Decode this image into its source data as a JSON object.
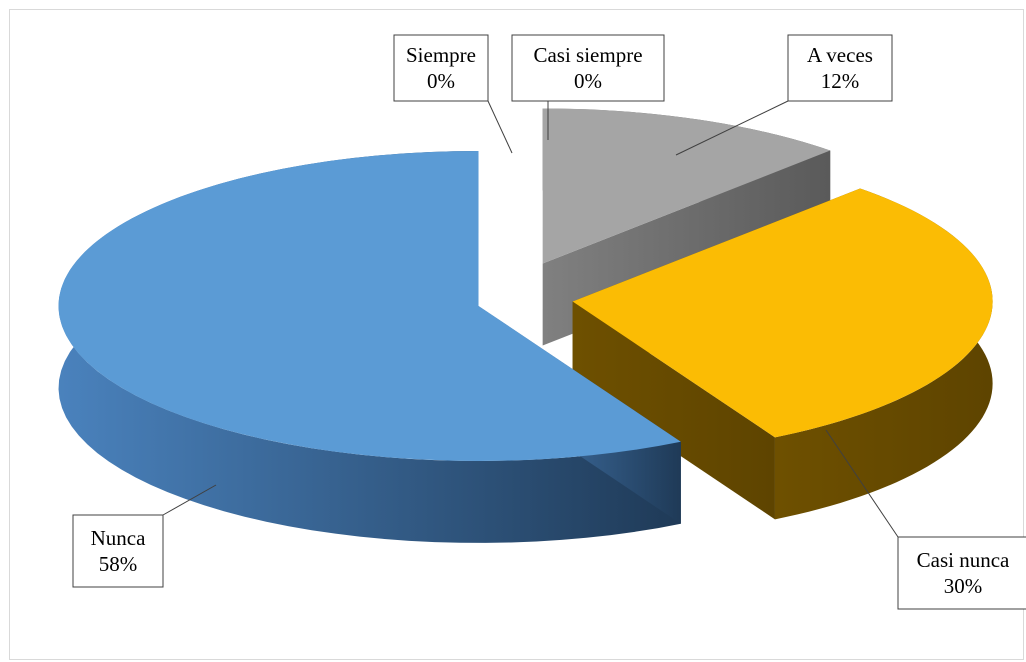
{
  "chart_data": {
    "type": "pie",
    "style": "3d-exploded",
    "title": "",
    "legend": "none",
    "categories": [
      "Siempre",
      "Casi siempre",
      "A veces",
      "Casi nunca",
      "Nunca"
    ],
    "values": [
      0,
      0,
      12,
      30,
      58
    ],
    "value_labels": [
      "0%",
      "0%",
      "12%",
      "30%",
      "58%"
    ],
    "colors": [
      "#7f7f7f",
      "#a5a5a5",
      "#a5a5a5",
      "#fbbc04",
      "#5b9bd5"
    ]
  }
}
